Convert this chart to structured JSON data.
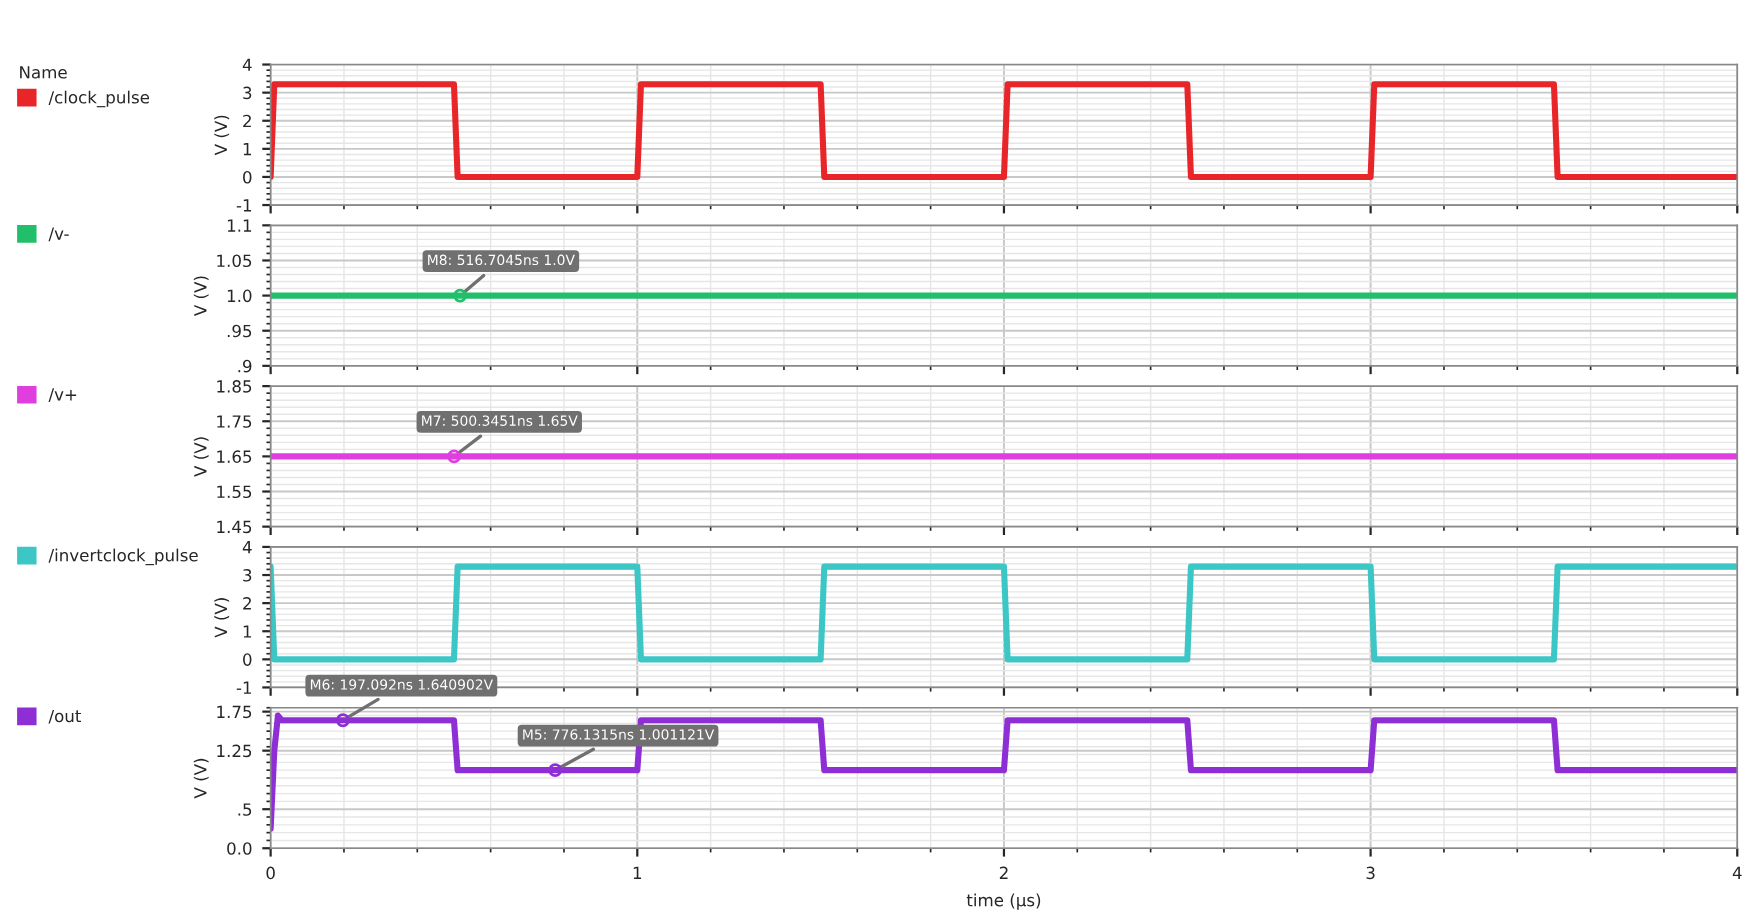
{
  "chart_data": [
    {
      "type": "line",
      "legend_title": "Name",
      "ylabel": "V (V)",
      "xlim": [
        0,
        4
      ],
      "xticks": [
        0,
        1,
        2,
        3,
        4
      ],
      "ylim": [
        -1,
        4
      ],
      "yticks": [
        -1,
        0,
        1,
        2,
        3,
        4
      ],
      "grid": true,
      "legend": "left",
      "tick_labels": "y",
      "series": [
        {
          "name": "/clock_pulse",
          "color": "#e8262a",
          "x": [
            0,
            0.01,
            0.5,
            0.51,
            1.0,
            1.01,
            1.5,
            1.51,
            2.0,
            2.01,
            2.5,
            2.51,
            3.0,
            3.01,
            3.5,
            3.51,
            4.0
          ],
          "values": [
            0,
            3.3,
            3.3,
            0,
            0,
            3.3,
            3.3,
            0,
            0,
            3.3,
            3.3,
            0,
            0,
            3.3,
            3.3,
            0,
            0
          ]
        }
      ]
    },
    {
      "type": "line",
      "ylabel": "V (V)",
      "xlim": [
        0,
        4
      ],
      "xticks": [
        0,
        1,
        2,
        3,
        4
      ],
      "ylim": [
        0.9,
        1.1
      ],
      "yticks": [
        {
          "value": 0.9,
          "label": ".9"
        },
        {
          "value": 0.95,
          "label": ".95"
        },
        {
          "value": 1.0,
          "label": "1.0"
        },
        {
          "value": 1.05,
          "label": "1.05"
        },
        1.1
      ],
      "grid": true,
      "legend": "left",
      "tick_labels": "y",
      "annotations": [
        {
          "text": "M8: 516.7045ns 1.0V",
          "x": 0.5167,
          "y": 1.0
        }
      ],
      "series": [
        {
          "name": "/v-",
          "color": "#22bf6a",
          "x": [
            0,
            4
          ],
          "values": [
            1.0,
            1.0
          ]
        }
      ]
    },
    {
      "type": "line",
      "ylabel": "V (V)",
      "xlim": [
        0,
        4
      ],
      "xticks": [
        0,
        1,
        2,
        3,
        4
      ],
      "ylim": [
        1.45,
        1.85
      ],
      "yticks": [
        1.45,
        1.55,
        1.65,
        1.75,
        1.85
      ],
      "grid": true,
      "legend": "left",
      "tick_labels": "y",
      "annotations": [
        {
          "text": "M7: 500.3451ns 1.65V",
          "x": 0.5003,
          "y": 1.65
        }
      ],
      "series": [
        {
          "name": "/v+",
          "color": "#de3fde",
          "x": [
            0,
            4
          ],
          "values": [
            1.65,
            1.65
          ]
        }
      ]
    },
    {
      "type": "line",
      "ylabel": "V (V)",
      "xlim": [
        0,
        4
      ],
      "xticks": [
        0,
        1,
        2,
        3,
        4
      ],
      "ylim": [
        -1,
        4
      ],
      "yticks": [
        -1,
        0,
        1,
        2,
        3,
        4
      ],
      "grid": true,
      "legend": "left",
      "tick_labels": "y",
      "series": [
        {
          "name": "/invertclock_pulse",
          "color": "#3cc6c6",
          "x": [
            0,
            0.01,
            0.5,
            0.51,
            1.0,
            1.01,
            1.5,
            1.51,
            2.0,
            2.01,
            2.5,
            2.51,
            3.0,
            3.01,
            3.5,
            3.51,
            4.0
          ],
          "values": [
            3.3,
            0,
            0,
            3.3,
            3.3,
            0,
            0,
            3.3,
            3.3,
            0,
            0,
            3.3,
            3.3,
            0,
            0,
            3.3,
            3.3
          ]
        }
      ]
    },
    {
      "type": "line",
      "ylabel": "V (V)",
      "xlabel": "time (µs)",
      "xlim": [
        0,
        4
      ],
      "xticks": [
        0,
        1,
        2,
        3,
        4
      ],
      "ylim": [
        0,
        1.8
      ],
      "yticks": [
        {
          "value": 0,
          "label": "0.0"
        },
        {
          "value": 0.5,
          "label": ".5"
        },
        1.25,
        1.75
      ],
      "grid": true,
      "legend": "left",
      "annotations": [
        {
          "text": "M6: 197.092ns 1.640902V",
          "x": 0.1971,
          "y": 1.64
        },
        {
          "text": "M5: 776.1315ns 1.001121V",
          "x": 0.7761,
          "y": 1.0
        }
      ],
      "series": [
        {
          "name": "/out",
          "color": "#8e2fd6",
          "x": [
            0,
            0.01,
            0.02,
            0.03,
            0.5,
            0.51,
            1.0,
            1.01,
            1.5,
            1.51,
            2.0,
            2.01,
            2.5,
            2.51,
            3.0,
            3.01,
            3.5,
            3.51,
            4.0
          ],
          "values": [
            0.25,
            1.25,
            1.7,
            1.64,
            1.64,
            1.0,
            1.0,
            1.64,
            1.64,
            1.0,
            1.0,
            1.64,
            1.64,
            1.0,
            1.0,
            1.64,
            1.64,
            1.0,
            1.0
          ]
        }
      ]
    }
  ]
}
